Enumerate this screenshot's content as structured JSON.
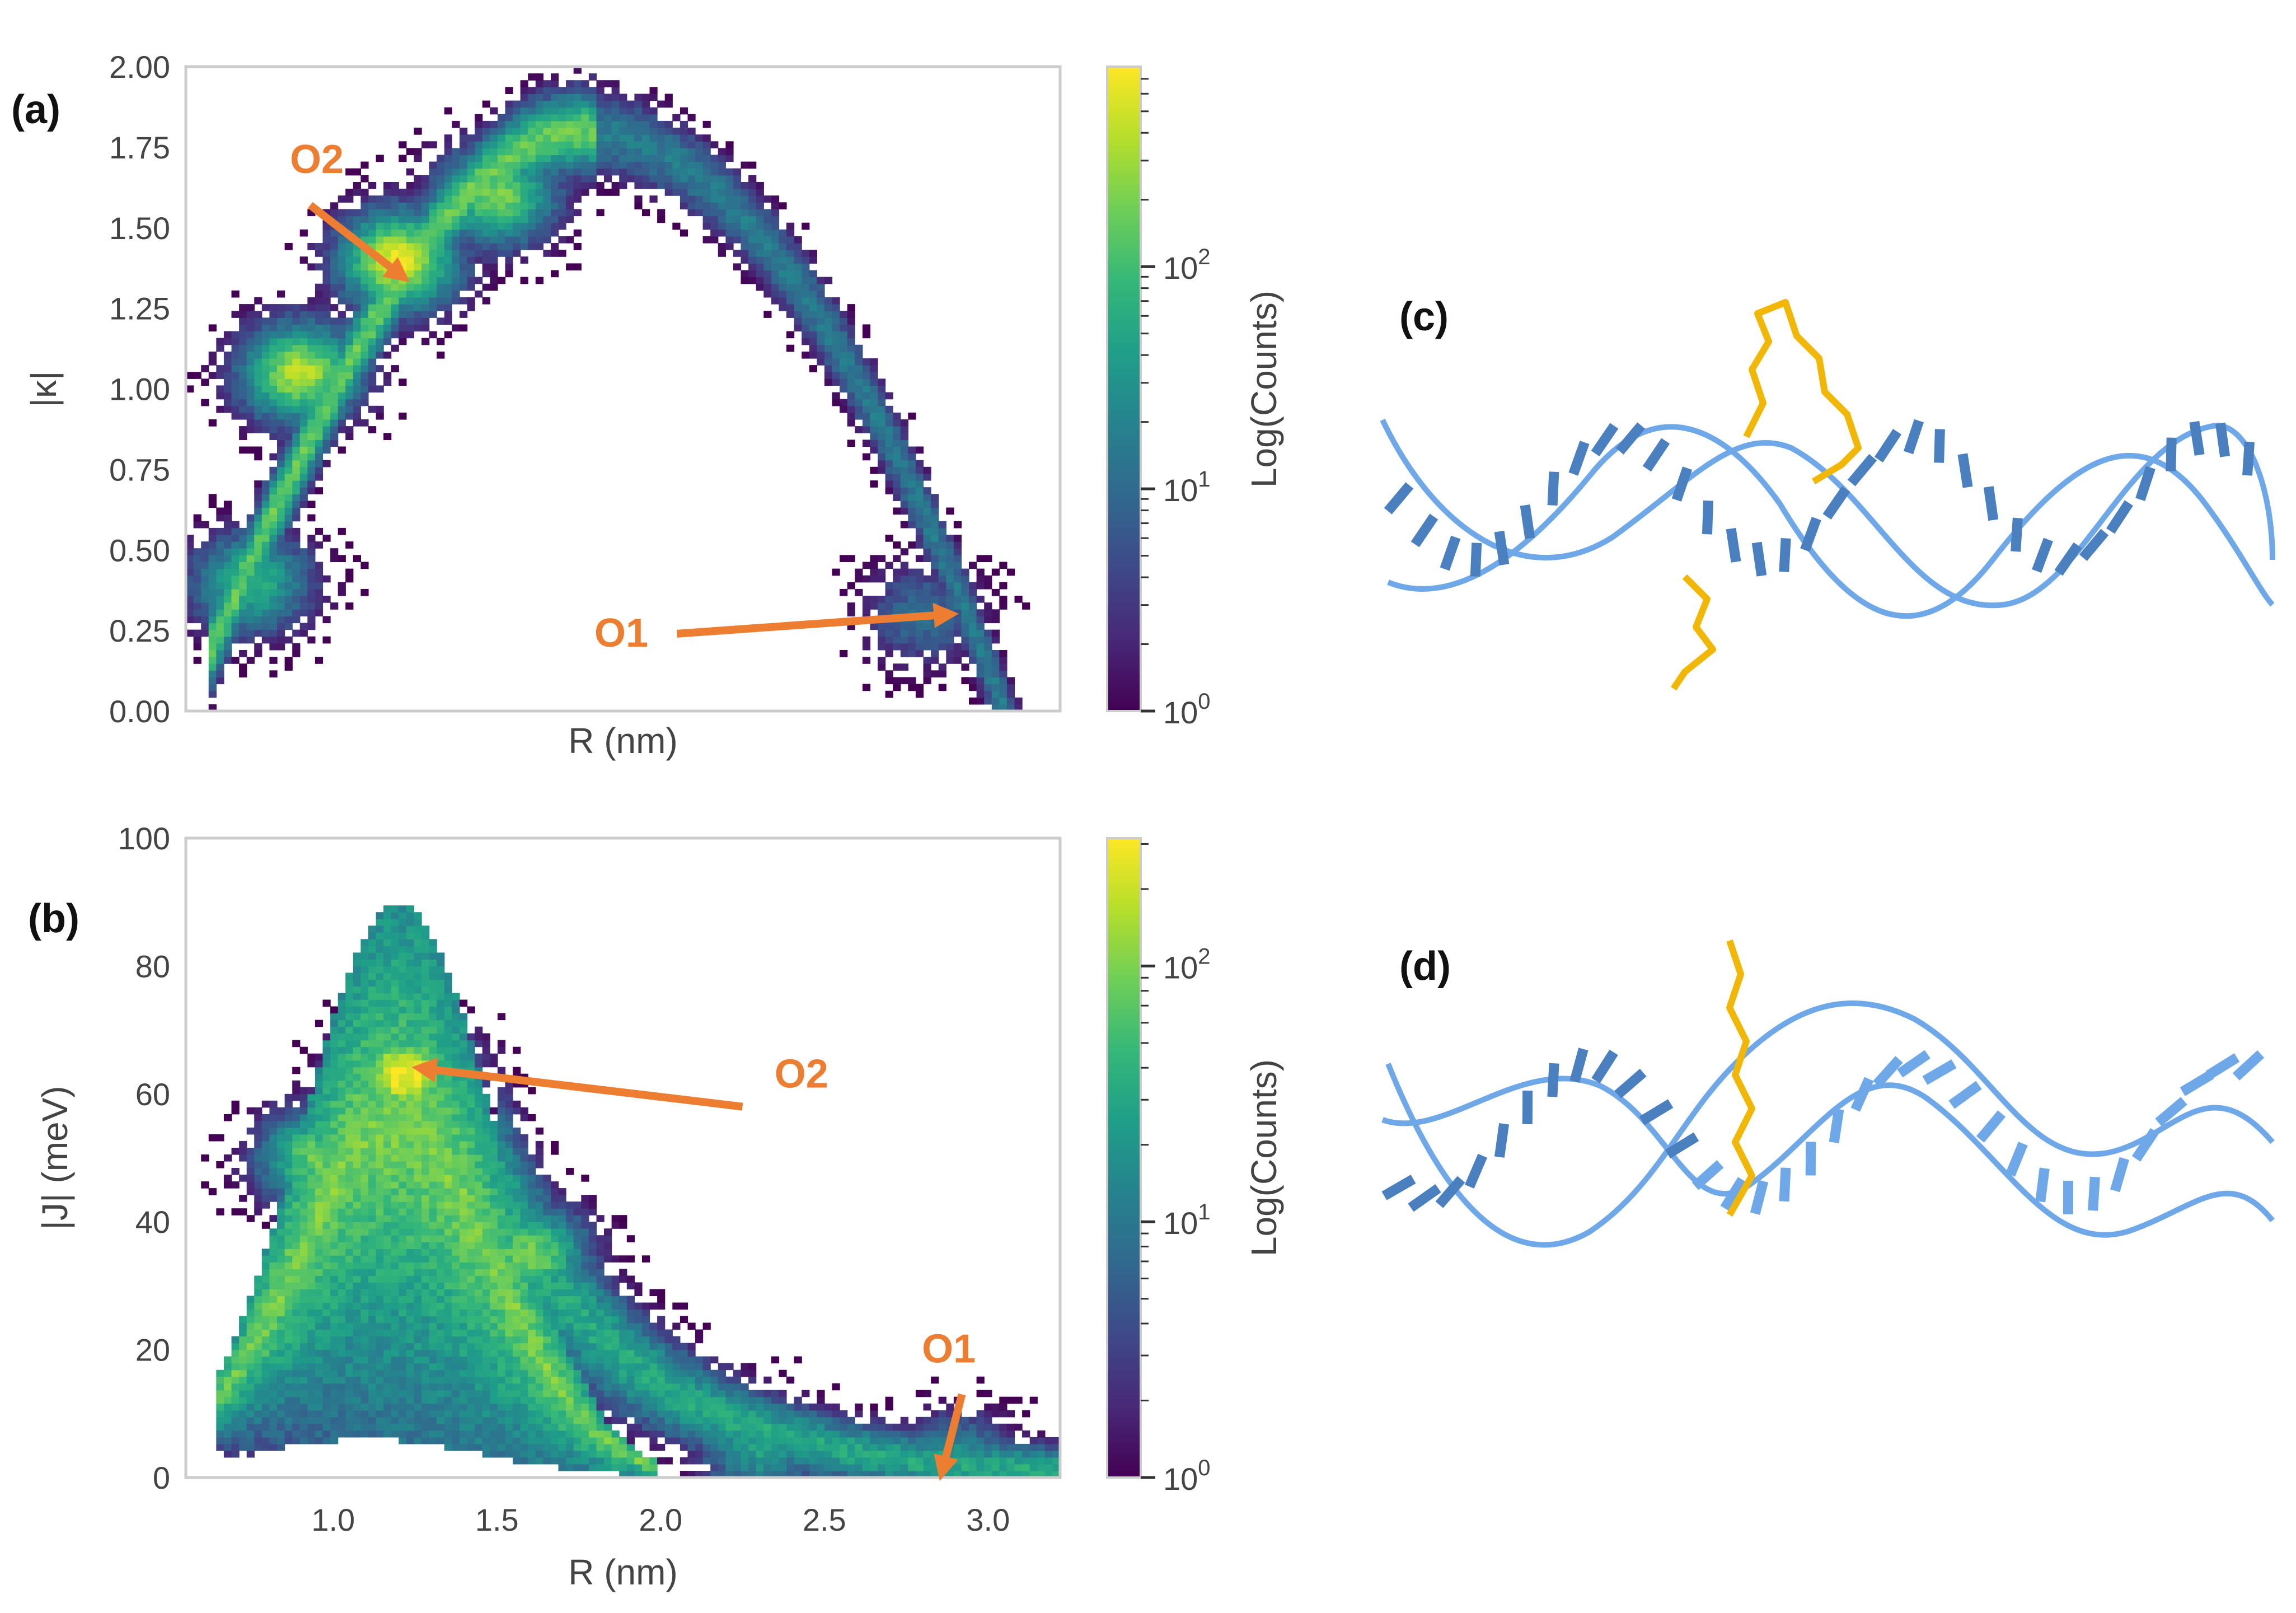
{
  "colors": {
    "annotation": "#ED7D31",
    "frame": "#cccccc",
    "dna_blue": "#6FA8E8",
    "dna_dark": "#4A7FC0",
    "ligand": "#F2B705"
  },
  "colormap": [
    "#440154",
    "#482878",
    "#3e4989",
    "#31688e",
    "#26828e",
    "#1f9e89",
    "#35b779",
    "#6ece58",
    "#b5de2b",
    "#fde725"
  ],
  "chart_data": [
    {
      "type": "heatmap",
      "panel_label": "(a)",
      "xlabel": "R (nm)",
      "ylabel": "|κ|",
      "xlim": [
        0.55,
        3.22
      ],
      "ylim": [
        0,
        2.0
      ],
      "yticks": [
        "0.00",
        "0.25",
        "0.50",
        "0.75",
        "1.00",
        "1.25",
        "1.50",
        "1.75",
        "2.00"
      ],
      "ytick_values": [
        0,
        0.25,
        0.5,
        0.75,
        1.0,
        1.25,
        1.5,
        1.75,
        2.0
      ],
      "xticks": [],
      "colorbar": {
        "label": "Log(Counts)",
        "scale": "log",
        "max_exp": 2.9,
        "ticks": [
          {
            "base": "10",
            "exp": "0",
            "value": 0
          },
          {
            "base": "10",
            "exp": "1",
            "value": 1
          },
          {
            "base": "10",
            "exp": "2",
            "value": 2
          }
        ]
      },
      "density_peaks": [
        {
          "x": 1.2,
          "y": 1.4,
          "log10": 2.8
        },
        {
          "x": 0.9,
          "y": 1.05,
          "log10": 2.6
        },
        {
          "x": 1.5,
          "y": 1.6,
          "log10": 2.3
        },
        {
          "x": 0.75,
          "y": 0.4,
          "log10": 1.9
        },
        {
          "x": 2.8,
          "y": 0.3,
          "log10": 1.0
        }
      ],
      "annotations": [
        {
          "text": "O2",
          "label_at": [
            0.95,
            1.67
          ],
          "arrow_from": [
            0.93,
            1.57
          ],
          "arrow_to": [
            1.21,
            1.35
          ]
        },
        {
          "text": "O1",
          "label_at": [
            1.88,
            0.2
          ],
          "arrow_from": [
            2.05,
            0.24
          ],
          "arrow_to": [
            2.88,
            0.3
          ]
        }
      ]
    },
    {
      "type": "heatmap",
      "panel_label": "(b)",
      "xlabel": "R (nm)",
      "ylabel": "|J| (meV)",
      "xlim": [
        0.55,
        3.22
      ],
      "ylim": [
        0,
        100
      ],
      "yticks": [
        "0",
        "20",
        "40",
        "60",
        "80",
        "100"
      ],
      "ytick_values": [
        0,
        20,
        40,
        60,
        80,
        100
      ],
      "xticks": [
        "1.0",
        "1.5",
        "2.0",
        "2.5",
        "3.0"
      ],
      "xtick_values": [
        1.0,
        1.5,
        2.0,
        2.5,
        3.0
      ],
      "colorbar": {
        "label": "Log(Counts)",
        "scale": "log",
        "max_exp": 2.5,
        "ticks": [
          {
            "base": "10",
            "exp": "0",
            "value": 0
          },
          {
            "base": "10",
            "exp": "1",
            "value": 1
          },
          {
            "base": "10",
            "exp": "2",
            "value": 2
          }
        ]
      },
      "density_peaks": [
        {
          "x": 1.22,
          "y": 63,
          "log10": 2.5
        },
        {
          "x": 1.6,
          "y": 35,
          "log10": 2.0
        },
        {
          "x": 0.95,
          "y": 50,
          "log10": 1.9
        },
        {
          "x": 2.3,
          "y": 5,
          "log10": 1.4
        },
        {
          "x": 2.9,
          "y": 2,
          "log10": 1.3
        }
      ],
      "annotations": [
        {
          "text": "O2",
          "label_at": [
            2.43,
            61
          ],
          "arrow_from": [
            2.25,
            58
          ],
          "arrow_to": [
            1.27,
            64
          ]
        },
        {
          "text": "O1",
          "label_at": [
            2.88,
            18
          ],
          "arrow_from": [
            2.92,
            13
          ],
          "arrow_to": [
            2.86,
            1
          ]
        }
      ]
    }
  ],
  "structures": [
    {
      "panel_label": "(c)",
      "caption": "DNA duplex with bound ligand (conformation c)"
    },
    {
      "panel_label": "(d)",
      "caption": "DNA duplex with bound ligand (conformation d)"
    }
  ]
}
